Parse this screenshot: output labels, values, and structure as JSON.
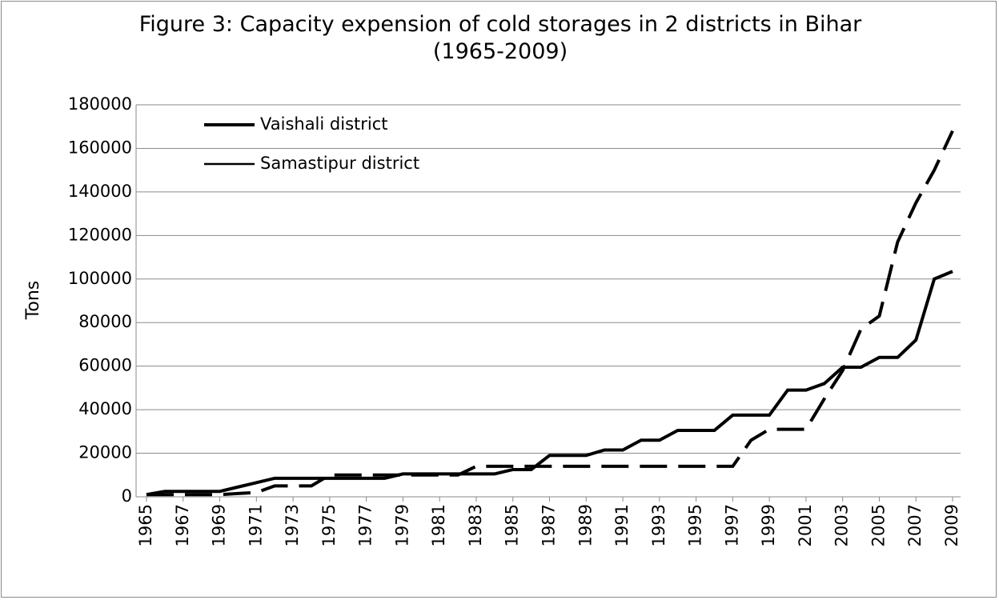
{
  "chart_data": {
    "type": "line",
    "title": "Figure 3: Capacity expension of cold storages in 2 districts in Bihar (1965-2009)",
    "y_label": "Tons",
    "x": [
      1965,
      1966,
      1967,
      1968,
      1969,
      1970,
      1971,
      1972,
      1973,
      1974,
      1975,
      1976,
      1977,
      1978,
      1979,
      1980,
      1981,
      1982,
      1983,
      1984,
      1985,
      1986,
      1987,
      1988,
      1989,
      1990,
      1991,
      1992,
      1993,
      1994,
      1995,
      1996,
      1997,
      1998,
      1999,
      2000,
      2001,
      2002,
      2003,
      2004,
      2005,
      2006,
      2007,
      2008,
      2009
    ],
    "series": [
      {
        "name": "Vaishali district",
        "color": "#000000",
        "dashed": false,
        "values": [
          1000,
          2500,
          2500,
          2500,
          2500,
          4500,
          6500,
          8500,
          8500,
          8500,
          8500,
          8500,
          8500,
          8500,
          10500,
          10500,
          10500,
          10500,
          10500,
          10500,
          12500,
          12500,
          19000,
          19000,
          19000,
          21500,
          21500,
          26000,
          26000,
          30500,
          30500,
          30500,
          37500,
          37500,
          37500,
          49000,
          49000,
          52000,
          59500,
          59500,
          64000,
          64000,
          72000,
          100000,
          103500
        ]
      },
      {
        "name": "Samastipur district",
        "color": "#000000",
        "dashed": true,
        "values": [
          1000,
          1000,
          1000,
          1000,
          1000,
          1500,
          2000,
          5000,
          5000,
          5000,
          10000,
          10000,
          10000,
          10000,
          10000,
          10000,
          10000,
          10000,
          14000,
          14000,
          14000,
          14000,
          14000,
          14000,
          14000,
          14000,
          14000,
          14000,
          14000,
          14000,
          14000,
          14000,
          14000,
          26000,
          31000,
          31000,
          31000,
          45000,
          58000,
          77000,
          83000,
          117000,
          135000,
          150000,
          168000
        ]
      }
    ],
    "xlim": [
      1965,
      2009
    ],
    "xticks": [
      1965,
      1967,
      1969,
      1971,
      1973,
      1975,
      1977,
      1979,
      1981,
      1983,
      1985,
      1987,
      1989,
      1991,
      1993,
      1995,
      1997,
      1999,
      2001,
      2003,
      2005,
      2007,
      2009
    ],
    "ylim": [
      0,
      180000
    ],
    "yticks": [
      0,
      20000,
      40000,
      60000,
      80000,
      100000,
      120000,
      140000,
      160000,
      180000
    ],
    "grid": true,
    "legend": "top-left"
  }
}
